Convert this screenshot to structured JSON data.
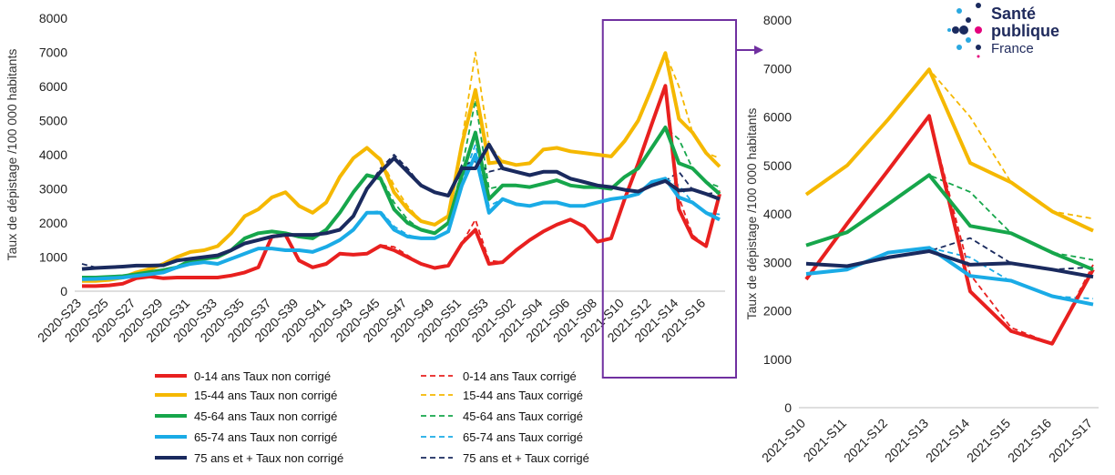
{
  "logo": {
    "line1": "Santé",
    "line2": "publique",
    "line3": "France"
  },
  "chart_data": [
    {
      "type": "line",
      "ylabel": "Taux de dépistage /100 000 habitants",
      "ylim": [
        0,
        8000
      ],
      "yticks": [
        0,
        1000,
        2000,
        3000,
        4000,
        5000,
        6000,
        7000,
        8000
      ],
      "grid": false,
      "legend_position": "bottom",
      "x": [
        "2020-S23",
        "2020-S24",
        "2020-S25",
        "2020-S26",
        "2020-S27",
        "2020-S28",
        "2020-S29",
        "2020-S30",
        "2020-S31",
        "2020-S32",
        "2020-S33",
        "2020-S34",
        "2020-S35",
        "2020-S36",
        "2020-S37",
        "2020-S38",
        "2020-S39",
        "2020-S40",
        "2020-S41",
        "2020-S42",
        "2020-S43",
        "2020-S44",
        "2020-S45",
        "2020-S46",
        "2020-S47",
        "2020-S48",
        "2020-S49",
        "2020-S50",
        "2020-S51",
        "2020-S52",
        "2020-S53",
        "2021-S01",
        "2021-S02",
        "2021-S03",
        "2021-S04",
        "2021-S05",
        "2021-S06",
        "2021-S07",
        "2021-S08",
        "2021-S09",
        "2021-S10",
        "2021-S11",
        "2021-S12",
        "2021-S13",
        "2021-S14",
        "2021-S15",
        "2021-S16",
        "2021-S17"
      ],
      "xtick_labels": [
        "2020-S23",
        "2020-S25",
        "2020-S27",
        "2020-S29",
        "2020-S31",
        "2020-S33",
        "2020-S35",
        "2020-S37",
        "2020-S39",
        "2020-S41",
        "2020-S43",
        "2020-S45",
        "2020-S47",
        "2020-S49",
        "2020-S51",
        "2020-S53",
        "2021-S02",
        "2021-S04",
        "2021-S06",
        "2021-S08",
        "2021-S10",
        "2021-S12",
        "2021-S14",
        "2021-S16"
      ],
      "highlight": {
        "x_start": "2021-S10",
        "x_end": "2021-S17",
        "color": "#7030a0"
      },
      "series": [
        {
          "name": "0-14 ans  Taux non corrigé",
          "color": "#e8201f",
          "dashed": false,
          "values": [
            150,
            150,
            170,
            220,
            380,
            430,
            380,
            400,
            400,
            400,
            400,
            460,
            550,
            700,
            1600,
            1650,
            900,
            700,
            800,
            1100,
            1070,
            1100,
            1330,
            1200,
            1000,
            800,
            680,
            750,
            1400,
            1800,
            800,
            850,
            1200,
            1500,
            1750,
            1950,
            2100,
            1900,
            1450,
            1550,
            2700,
            3750,
            4900,
            6020,
            2400,
            1580,
            1320,
            2850
          ]
        },
        {
          "name": "15-44 ans  Taux non corrigé",
          "color": "#f5b800",
          "dashed": false,
          "values": [
            300,
            300,
            330,
            400,
            550,
            650,
            800,
            1000,
            1150,
            1200,
            1320,
            1700,
            2200,
            2400,
            2750,
            2900,
            2500,
            2300,
            2600,
            3350,
            3900,
            4200,
            3850,
            2900,
            2400,
            2050,
            1950,
            2200,
            4300,
            5900,
            3750,
            3800,
            3700,
            3750,
            4150,
            4200,
            4100,
            4050,
            4000,
            3950,
            4400,
            5000,
            5950,
            6980,
            5050,
            4650,
            4050,
            3650
          ]
        },
        {
          "name": "45-64 ans  Taux non corrigé",
          "color": "#16a64b",
          "dashed": false,
          "values": [
            400,
            400,
            420,
            440,
            500,
            560,
            620,
            700,
            900,
            950,
            1000,
            1200,
            1550,
            1700,
            1750,
            1700,
            1600,
            1550,
            1800,
            2300,
            2900,
            3400,
            3300,
            2400,
            2000,
            1800,
            1700,
            2000,
            3400,
            4650,
            2700,
            3100,
            3100,
            3050,
            3150,
            3250,
            3100,
            3050,
            3050,
            3000,
            3350,
            3600,
            4200,
            4800,
            3750,
            3600,
            3200,
            2850
          ]
        },
        {
          "name": "65-74 ans  Taux non corrigé",
          "color": "#1aabe6",
          "dashed": false,
          "values": [
            350,
            360,
            380,
            400,
            450,
            500,
            550,
            700,
            800,
            850,
            800,
            950,
            1100,
            1250,
            1250,
            1200,
            1200,
            1150,
            1300,
            1500,
            1800,
            2300,
            2300,
            1800,
            1600,
            1550,
            1550,
            1750,
            3100,
            4000,
            2300,
            2700,
            2550,
            2500,
            2600,
            2600,
            2500,
            2500,
            2600,
            2700,
            2750,
            2850,
            3200,
            3300,
            2750,
            2600,
            2300,
            2100
          ]
        },
        {
          "name": "75 ans et + Taux non corrigé",
          "color": "#1a2a5e",
          "dashed": false,
          "values": [
            650,
            680,
            700,
            720,
            750,
            750,
            760,
            900,
            950,
            1000,
            1050,
            1200,
            1400,
            1500,
            1600,
            1650,
            1650,
            1650,
            1700,
            1800,
            2200,
            3000,
            3500,
            3900,
            3500,
            3100,
            2900,
            2800,
            3600,
            3600,
            4300,
            3600,
            3500,
            3400,
            3500,
            3500,
            3300,
            3200,
            3100,
            3050,
            2970,
            2920,
            3100,
            3230,
            2950,
            2980,
            2850,
            2700
          ]
        },
        {
          "name": "0-14 ans  Taux corrigé",
          "color": "#e8201f",
          "dashed": true,
          "values": [
            150,
            150,
            170,
            220,
            380,
            430,
            380,
            400,
            400,
            400,
            400,
            460,
            550,
            700,
            1600,
            1650,
            900,
            700,
            800,
            1100,
            1070,
            1100,
            1350,
            1300,
            1050,
            800,
            680,
            750,
            1400,
            2100,
            900,
            850,
            1200,
            1500,
            1750,
            1950,
            2100,
            1900,
            1450,
            1550,
            2700,
            3750,
            4900,
            6020,
            2750,
            1650,
            1320,
            2950
          ]
        },
        {
          "name": "15-44 ans  Taux corrigé",
          "color": "#f5b800",
          "dashed": true,
          "values": [
            300,
            300,
            330,
            400,
            550,
            650,
            800,
            1000,
            1150,
            1200,
            1320,
            1700,
            2200,
            2400,
            2750,
            2900,
            2500,
            2300,
            2600,
            3350,
            3900,
            4200,
            3900,
            3100,
            2500,
            2050,
            1950,
            2200,
            4400,
            7000,
            4300,
            3800,
            3700,
            3750,
            4150,
            4200,
            4100,
            4050,
            4000,
            3950,
            4400,
            5000,
            5950,
            6980,
            6000,
            4650,
            4050,
            3900
          ]
        },
        {
          "name": "45-64 ans  Taux corrigé",
          "color": "#16a64b",
          "dashed": true,
          "values": [
            400,
            400,
            420,
            440,
            500,
            560,
            620,
            700,
            900,
            950,
            1000,
            1200,
            1550,
            1700,
            1750,
            1700,
            1600,
            1550,
            1800,
            2300,
            2900,
            3400,
            3350,
            2600,
            2100,
            1800,
            1700,
            2000,
            3600,
            5600,
            3000,
            3100,
            3100,
            3050,
            3150,
            3250,
            3100,
            3050,
            3050,
            3000,
            3350,
            3600,
            4200,
            4800,
            4450,
            3600,
            3200,
            3050
          ]
        },
        {
          "name": "65-74 ans  Taux corrigé",
          "color": "#1aabe6",
          "dashed": true,
          "values": [
            350,
            360,
            380,
            400,
            450,
            500,
            550,
            700,
            800,
            850,
            800,
            950,
            1100,
            1250,
            1250,
            1200,
            1200,
            1150,
            1300,
            1500,
            1800,
            2300,
            2350,
            1900,
            1650,
            1550,
            1550,
            1750,
            3200,
            4300,
            2500,
            2700,
            2550,
            2500,
            2600,
            2600,
            2500,
            2500,
            2600,
            2700,
            2750,
            2850,
            3200,
            3300,
            3100,
            2600,
            2300,
            2250
          ]
        },
        {
          "name": "75 ans et + Taux corrigé",
          "color": "#1a2a5e",
          "dashed": true,
          "values": [
            800,
            700,
            700,
            720,
            750,
            750,
            760,
            900,
            950,
            1000,
            1050,
            1200,
            1400,
            1500,
            1600,
            1650,
            1650,
            1650,
            1700,
            1800,
            2200,
            3000,
            3600,
            4000,
            3600,
            3100,
            2900,
            2800,
            3700,
            3800,
            3500,
            3600,
            3500,
            3400,
            3500,
            3500,
            3300,
            3200,
            3100,
            3050,
            2970,
            2920,
            3100,
            3230,
            3500,
            2980,
            2850,
            2900
          ]
        }
      ]
    },
    {
      "type": "line",
      "ylabel": "Taux de dépistage /100 000 habitants",
      "ylim": [
        0,
        8000
      ],
      "yticks": [
        0,
        1000,
        2000,
        3000,
        4000,
        5000,
        6000,
        7000,
        8000
      ],
      "grid": false,
      "x": [
        "2021-S10",
        "2021-S11",
        "2021-S12",
        "2021-S13",
        "2021-S14",
        "2021-S15",
        "2021-S16",
        "2021-S17"
      ],
      "series": [
        {
          "name": "0-14 ans  Taux non corrigé",
          "color": "#e8201f",
          "dashed": false,
          "values": [
            2650,
            3800,
            4900,
            6020,
            2400,
            1580,
            1320,
            2850
          ]
        },
        {
          "name": "15-44 ans  Taux non corrigé",
          "color": "#f5b800",
          "dashed": false,
          "values": [
            4400,
            5000,
            5950,
            6980,
            5050,
            4650,
            4050,
            3650
          ]
        },
        {
          "name": "45-64 ans  Taux non corrigé",
          "color": "#16a64b",
          "dashed": false,
          "values": [
            3350,
            3620,
            4200,
            4800,
            3750,
            3600,
            3200,
            2850
          ]
        },
        {
          "name": "65-74 ans  Taux non corrigé",
          "color": "#1aabe6",
          "dashed": false,
          "values": [
            2760,
            2850,
            3200,
            3300,
            2720,
            2620,
            2300,
            2130
          ]
        },
        {
          "name": "75 ans et + Taux non corrigé",
          "color": "#1a2a5e",
          "dashed": false,
          "values": [
            2970,
            2920,
            3100,
            3230,
            2950,
            2980,
            2850,
            2700
          ]
        },
        {
          "name": "0-14 ans  Taux corrigé",
          "color": "#e8201f",
          "dashed": true,
          "values": [
            2650,
            3800,
            4900,
            6020,
            2750,
            1650,
            1320,
            2950
          ]
        },
        {
          "name": "15-44 ans  Taux corrigé",
          "color": "#f5b800",
          "dashed": true,
          "values": [
            4400,
            5000,
            5950,
            6980,
            6000,
            4650,
            4050,
            3900
          ]
        },
        {
          "name": "45-64 ans  Taux corrigé",
          "color": "#16a64b",
          "dashed": true,
          "values": [
            3350,
            3620,
            4200,
            4800,
            4450,
            3600,
            3200,
            3050
          ]
        },
        {
          "name": "65-74 ans  Taux corrigé",
          "color": "#1aabe6",
          "dashed": true,
          "values": [
            2760,
            2850,
            3200,
            3300,
            3100,
            2600,
            2300,
            2250
          ]
        },
        {
          "name": "75 ans et + Taux corrigé",
          "color": "#1a2a5e",
          "dashed": true,
          "values": [
            2970,
            2920,
            3100,
            3230,
            3500,
            2980,
            2850,
            2900
          ]
        }
      ]
    }
  ]
}
